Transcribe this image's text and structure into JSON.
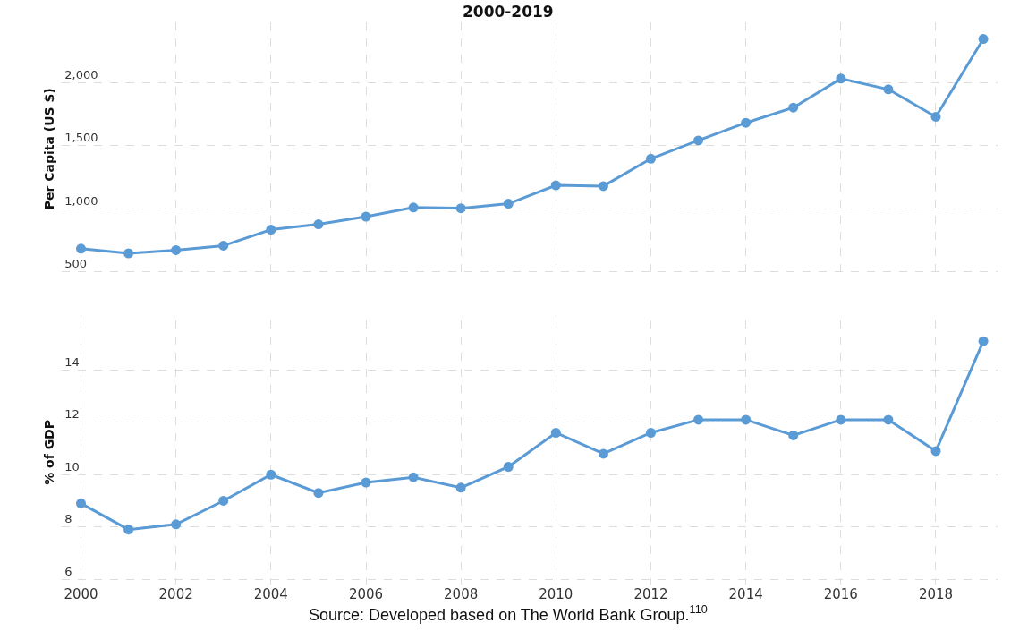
{
  "chart_data": [
    {
      "type": "line",
      "title": "2000-2019",
      "ylabel": "Per Capita (US $)",
      "x": [
        2000,
        2001,
        2002,
        2003,
        2004,
        2005,
        2006,
        2007,
        2008,
        2009,
        2010,
        2011,
        2012,
        2013,
        2014,
        2015,
        2016,
        2017,
        2018,
        2019
      ],
      "series": [
        {
          "color": "#5b9bd5",
          "values": [
            682,
            645,
            670,
            706,
            833,
            876,
            936,
            1009,
            1003,
            1039,
            1185,
            1179,
            1397,
            1542,
            1682,
            1803,
            2033,
            1948,
            1730,
            2348
          ]
        }
      ],
      "xlim": [
        1999.6,
        2019.3
      ],
      "xticks": [
        2000,
        2002,
        2004,
        2006,
        2008,
        2010,
        2012,
        2014,
        2016,
        2018
      ],
      "ylim": [
        470,
        2480
      ],
      "yticks": [
        {
          "value": 500,
          "label": "500"
        },
        {
          "value": 1000,
          "label": "1,000"
        },
        {
          "value": 1500,
          "label": "1,500"
        },
        {
          "value": 2000,
          "label": "2,000"
        }
      ],
      "tick_labels": "y",
      "grid": true,
      "marker": "circle",
      "line_style": "solid"
    },
    {
      "type": "line",
      "ylabel": "% of GDP",
      "x": [
        2000,
        2001,
        2002,
        2003,
        2004,
        2005,
        2006,
        2007,
        2008,
        2009,
        2010,
        2011,
        2012,
        2013,
        2014,
        2015,
        2016,
        2017,
        2018,
        2019
      ],
      "series": [
        {
          "color": "#5b9bd5",
          "values": [
            8.9,
            7.9,
            8.1,
            9.0,
            10.0,
            9.3,
            9.7,
            9.9,
            9.5,
            10.3,
            11.6,
            10.8,
            11.6,
            12.1,
            12.1,
            11.5,
            12.1,
            12.1,
            10.9,
            15.1
          ]
        }
      ],
      "xlim": [
        1999.6,
        2019.3
      ],
      "xticks": [
        2000,
        2002,
        2004,
        2006,
        2008,
        2010,
        2012,
        2014,
        2016,
        2018
      ],
      "ylim": [
        5.8,
        15.9
      ],
      "yticks": [
        6,
        8,
        10,
        12,
        14
      ],
      "grid": true,
      "marker": "circle",
      "line_style": "solid",
      "annotations": [
        "Source: Developed based on The World Bank Group.$^{110}$"
      ]
    }
  ]
}
